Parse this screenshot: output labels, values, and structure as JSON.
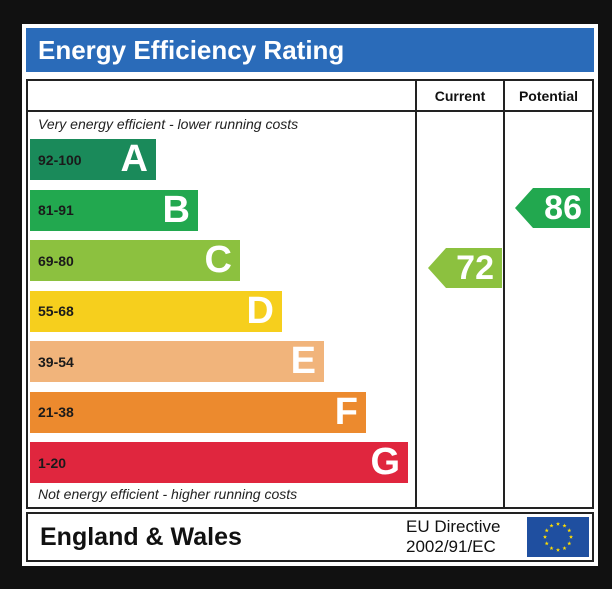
{
  "chart_data": {
    "type": "bar",
    "title": "Energy Efficiency Rating",
    "caption_top": "Very energy efficient - lower running costs",
    "caption_bottom": "Not energy efficient - higher running costs",
    "columns": {
      "current": "Current",
      "potential": "Potential"
    },
    "bands": [
      {
        "letter": "A",
        "range": "92-100",
        "min": 92,
        "max": 100,
        "color": "#1a8a5a"
      },
      {
        "letter": "B",
        "range": "81-91",
        "min": 81,
        "max": 91,
        "color": "#22a84f"
      },
      {
        "letter": "C",
        "range": "69-80",
        "min": 69,
        "max": 80,
        "color": "#8cc13f"
      },
      {
        "letter": "D",
        "range": "55-68",
        "min": 55,
        "max": 68,
        "color": "#f6cf1d"
      },
      {
        "letter": "E",
        "range": "39-54",
        "min": 39,
        "max": 54,
        "color": "#f1b47b"
      },
      {
        "letter": "F",
        "range": "21-38",
        "min": 21,
        "max": 38,
        "color": "#ec8a2e"
      },
      {
        "letter": "G",
        "range": "1-20",
        "min": 1,
        "max": 20,
        "color": "#e0263e"
      }
    ],
    "current_rating": {
      "value": 72,
      "label": "72",
      "band": "C",
      "color": "#8cc13f"
    },
    "potential_rating": {
      "value": 86,
      "label": "86",
      "band": "B",
      "color": "#22a84f"
    }
  },
  "footer": {
    "region": "England & Wales",
    "directive_line1": "EU Directive",
    "directive_line2": "2002/91/EC",
    "flag_color": "#1f4fa0",
    "star_color": "#ffdd00"
  }
}
